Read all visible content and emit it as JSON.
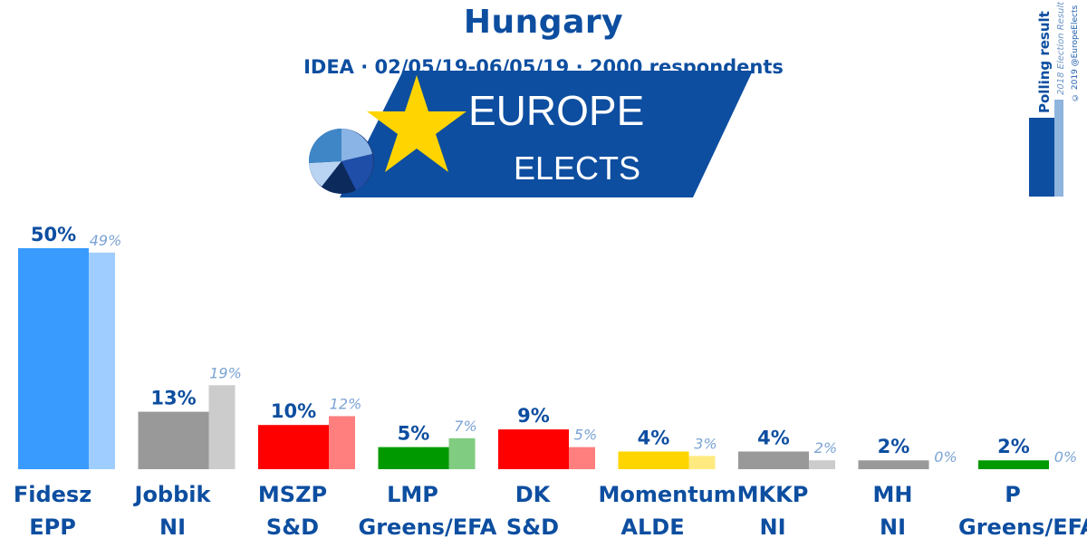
{
  "title": "Hungary",
  "subtitle": "IDEA · 02/05/19-06/05/19 · 2000 respondents",
  "logo": {
    "line1": "EUROPE",
    "line2": "ELECTS"
  },
  "legend": {
    "polling_label": "Polling result",
    "election_label": "2018 Election Result",
    "credit": "© 2019 @EuropeElects"
  },
  "chart_data": {
    "type": "bar",
    "categories": [
      "Fidesz",
      "Jobbik",
      "MSZP",
      "LMP",
      "DK",
      "Momentum",
      "MKKP",
      "MH",
      "P"
    ],
    "groups": [
      "EPP",
      "NI",
      "S&D",
      "Greens/EFA",
      "S&D",
      "ALDE",
      "NI",
      "NI",
      "Greens/EFA"
    ],
    "series": [
      {
        "values": [
          50,
          13,
          10,
          5,
          9,
          4,
          4,
          2,
          2
        ]
      },
      {
        "values": [
          49,
          19,
          12,
          7,
          5,
          3,
          2,
          0,
          0
        ]
      }
    ],
    "poll_labels": [
      "50%",
      "13%",
      "10%",
      "5%",
      "9%",
      "4%",
      "4%",
      "2%",
      "2%"
    ],
    "election_labels": [
      "49%",
      "19%",
      "12%",
      "7%",
      "5%",
      "3%",
      "2%",
      "0%",
      "0%"
    ],
    "colors": [
      "#3a9bff",
      "#999999",
      "#ff0000",
      "#009900",
      "#ff0000",
      "#ffd500",
      "#999999",
      "#999999",
      "#009900"
    ],
    "light_colors": [
      "#9fcdff",
      "#cccccc",
      "#ff7f7f",
      "#80cc80",
      "#ff7f7f",
      "#ffea80",
      "#cccccc",
      "#cccccc",
      "#80cc80"
    ],
    "ylim": [
      0,
      50
    ]
  }
}
